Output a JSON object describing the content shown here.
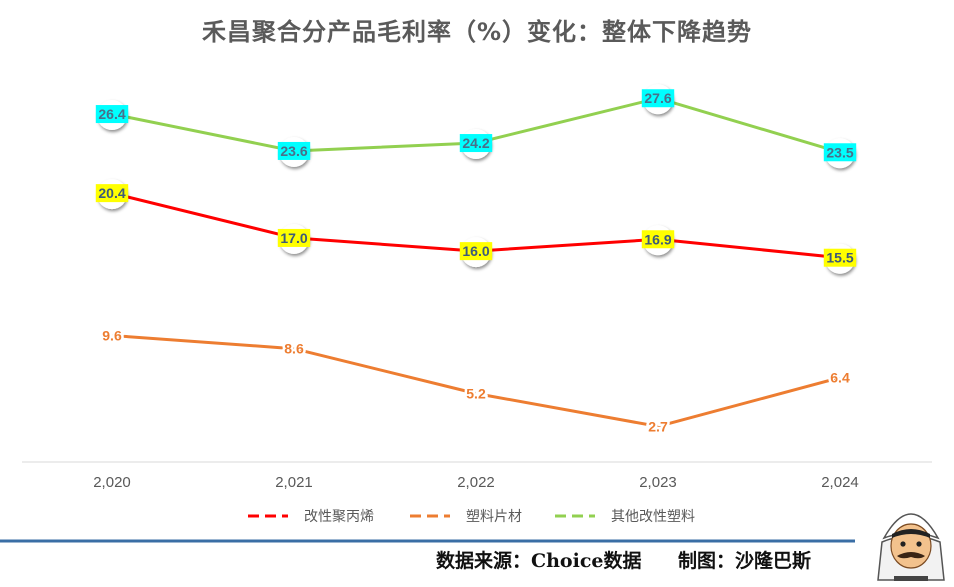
{
  "chart_data": {
    "type": "line",
    "title": "禾昌聚合分产品毛利率（%）变化：整体下降趋势",
    "categories": [
      "2,020",
      "2,021",
      "2,022",
      "2,023",
      "2,024"
    ],
    "ylim": [
      0,
      30
    ],
    "grid": false,
    "legend_position": "bottom",
    "series": [
      {
        "name": "改性聚丙烯",
        "values": [
          20.4,
          17.0,
          16.0,
          16.9,
          15.5
        ],
        "labels": [
          "20.4",
          "17.0",
          "16.0",
          "16.9",
          "15.5"
        ],
        "color": "#ff0000",
        "label_bg": "#ffff00",
        "label_color": "#3d5a7a",
        "markers": true
      },
      {
        "name": "塑料片材",
        "values": [
          9.6,
          8.6,
          5.2,
          2.7,
          6.4
        ],
        "labels": [
          "9.6",
          "8.6",
          "5.2",
          "2.7",
          "6.4"
        ],
        "color": "#ed7d31",
        "label_bg": "",
        "label_color": "#ed7d31",
        "markers": false
      },
      {
        "name": "其他改性塑料",
        "values": [
          26.4,
          23.6,
          24.2,
          27.6,
          23.5
        ],
        "labels": [
          "26.4",
          "23.6",
          "24.2",
          "27.6",
          "23.5"
        ],
        "color": "#92d050",
        "label_bg": "#00ffff",
        "label_color": "#4a6f8a",
        "markers": true
      }
    ]
  },
  "footer": {
    "source": "数据来源：Choice数据",
    "credit": "制图：沙隆巴斯"
  },
  "colors": {
    "footer_rule": "#3a6ea5",
    "axis": "#d9d9d9",
    "tick_text": "#595959"
  }
}
